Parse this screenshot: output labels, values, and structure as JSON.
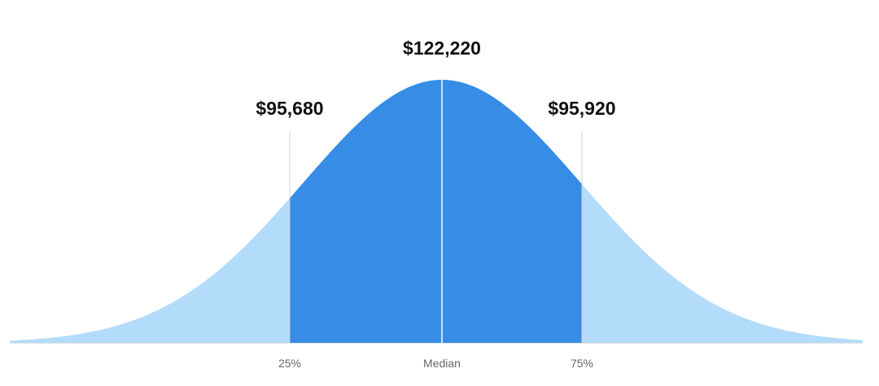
{
  "chart_data": {
    "type": "bell",
    "categories": [
      "25%",
      "Median",
      "75%"
    ],
    "values": [
      95680,
      122220,
      95920
    ],
    "value_labels": [
      "$95,680",
      "$122,220",
      "$95,920"
    ],
    "color": "#378de6",
    "tail_color": "#b3dcfa"
  }
}
